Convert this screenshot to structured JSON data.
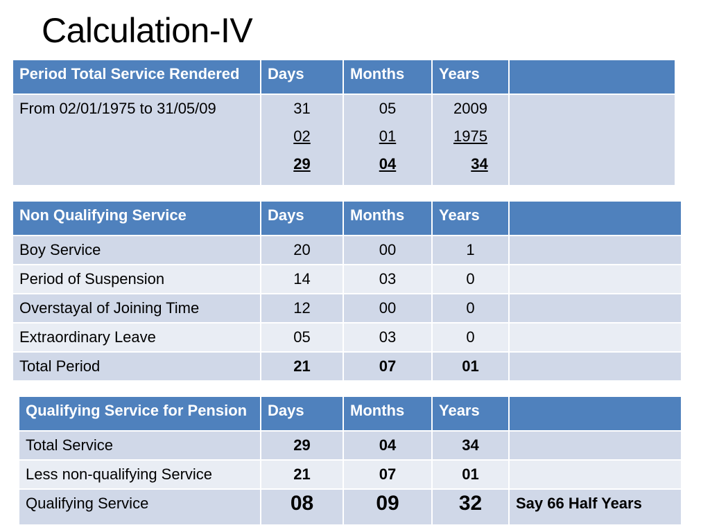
{
  "title": "Calculation-IV",
  "table1": {
    "headers": [
      "Period Total Service Rendered",
      "Days",
      "Months",
      "Years",
      ""
    ],
    "row": {
      "label": "From  02/01/1975 to 31/05/09",
      "days": [
        "31",
        "02",
        "29"
      ],
      "months": [
        "05",
        "01",
        "04"
      ],
      "years": [
        "2009",
        "1975",
        "34"
      ]
    }
  },
  "table2": {
    "headers": [
      "Non Qualifying Service",
      "Days",
      "Months",
      "Years",
      ""
    ],
    "rows": [
      {
        "label": "Boy Service",
        "days": "20",
        "months": "00",
        "years": "1"
      },
      {
        "label": "Period of Suspension",
        "days": "14",
        "months": "03",
        "years": "0"
      },
      {
        "label": "Overstayal of Joining Time",
        "days": "12",
        "months": "00",
        "years": "0"
      },
      {
        "label": "Extraordinary Leave",
        "days": "05",
        "months": "03",
        "years": "0"
      },
      {
        "label": "Total Period",
        "days": "21",
        "months": "07",
        "years": "01"
      }
    ]
  },
  "table3": {
    "headers": [
      "Qualifying Service for Pension",
      "Days",
      "Months",
      "Years",
      ""
    ],
    "rows": [
      {
        "label": "Total Service",
        "days": "29",
        "months": "04",
        "years": "34",
        "note": ""
      },
      {
        "label": "Less non-qualifying Service",
        "days": "21",
        "months": "07",
        "years": "01",
        "note": ""
      },
      {
        "label": "Qualifying Service",
        "days": "08",
        "months": "09",
        "years": "32",
        "note": "Say 66 Half Years"
      }
    ]
  }
}
